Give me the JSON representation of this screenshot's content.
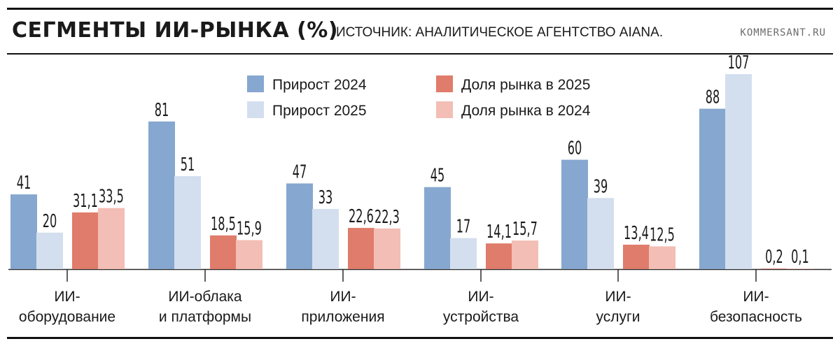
{
  "header": {
    "title": "СЕГМЕНТЫ ИИ-РЫНКА (%)",
    "source": "ИСТОЧНИК: АНАЛИТИЧЕСКОЕ АГЕНТСТВО AIANA.",
    "site": "KOMMERSANT.RU"
  },
  "chart_data": {
    "type": "bar",
    "title": "СЕГМЕНТЫ ИИ-РЫНКА (%)",
    "legend_position": "top-center",
    "grid": false,
    "ylim": [
      0,
      107
    ],
    "categories": [
      [
        "ИИ-",
        "оборудование"
      ],
      [
        "ИИ-облака",
        "и платформы"
      ],
      [
        "ИИ-",
        "приложения"
      ],
      [
        "ИИ-",
        "устройства"
      ],
      [
        "ИИ-",
        "услуги"
      ],
      [
        "ИИ-",
        "безопасность"
      ]
    ],
    "series": [
      {
        "name": "Прирост 2024",
        "color": "#86a7cf",
        "values": [
          41,
          81,
          47,
          45,
          60,
          88
        ],
        "labels": [
          "41",
          "81",
          "47",
          "45",
          "60",
          "88"
        ]
      },
      {
        "name": "Прирост 2025",
        "color": "#d3dfee",
        "values": [
          20,
          51,
          33,
          17,
          39,
          107
        ],
        "labels": [
          "20",
          "51",
          "33",
          "17",
          "39",
          "107"
        ]
      },
      {
        "name": "Доля рынка в 2025",
        "color": "#e07c6b",
        "values": [
          31.1,
          18.5,
          22.6,
          14.1,
          13.4,
          0.2
        ],
        "labels": [
          "31,1",
          "18,5",
          "22,6",
          "14,1",
          "13,4",
          "0,2"
        ]
      },
      {
        "name": "Доля рынка в 2024",
        "color": "#f3beb5",
        "values": [
          33.5,
          15.9,
          22.3,
          15.7,
          12.5,
          0.1
        ],
        "labels": [
          "33,5",
          "15,9",
          "22,3",
          "15,7",
          "12,5",
          "0,1"
        ]
      }
    ]
  }
}
